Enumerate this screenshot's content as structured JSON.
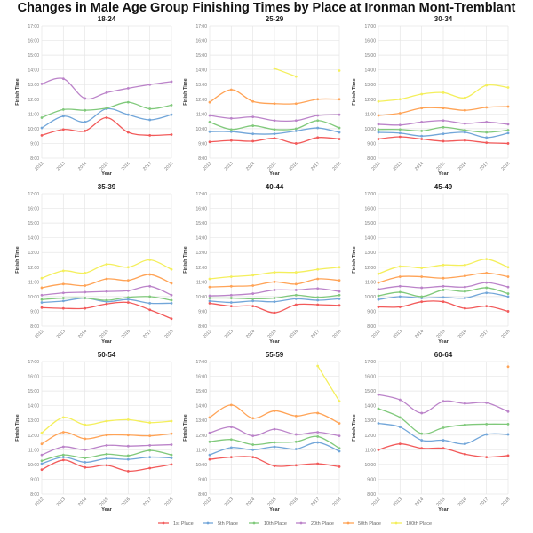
{
  "title": "Changes in Male Age Group Finishing Times by Place at Ironman Mont-Tremblant",
  "chart_data": {
    "type": "line",
    "xlabel": "Year",
    "ylabel": "Finish Time",
    "ylim": [
      8,
      17
    ],
    "y_ticks": [
      "8:00",
      "9:00",
      "10:00",
      "11:00",
      "12:00",
      "13:00",
      "14:00",
      "15:00",
      "16:00",
      "17:00"
    ],
    "x": [
      "2012",
      "2013",
      "2014",
      "2015",
      "2016",
      "2017",
      "2018"
    ],
    "grid": true,
    "legend_position": "bottom",
    "series_names": [
      "1st Place",
      "5th Place",
      "10th Place",
      "20th Place",
      "50th Place",
      "100th Place"
    ],
    "colors": [
      "#f25a5a",
      "#72a6d9",
      "#80c97b",
      "#bb83c9",
      "#ffa356",
      "#f4ef5c"
    ],
    "panels": [
      {
        "title": "18-24",
        "series": [
          [
            9.55,
            9.95,
            9.85,
            10.75,
            9.75,
            9.55,
            9.6
          ],
          [
            10.05,
            10.85,
            10.45,
            11.35,
            10.95,
            10.6,
            10.95
          ],
          [
            10.75,
            11.3,
            11.25,
            11.4,
            11.8,
            11.35,
            11.6
          ],
          [
            13.05,
            13.4,
            12.05,
            12.45,
            12.75,
            13.0,
            13.2
          ],
          [
            null,
            null,
            null,
            null,
            null,
            null,
            null
          ],
          [
            null,
            null,
            null,
            null,
            null,
            null,
            null
          ]
        ]
      },
      {
        "title": "25-29",
        "series": [
          [
            9.1,
            9.2,
            9.15,
            9.35,
            9.0,
            9.4,
            9.3
          ],
          [
            9.8,
            9.8,
            9.65,
            9.65,
            9.85,
            10.05,
            9.75
          ],
          [
            10.45,
            9.95,
            10.2,
            9.95,
            10.0,
            10.55,
            10.05
          ],
          [
            10.9,
            10.7,
            10.8,
            10.55,
            10.55,
            10.9,
            10.95
          ],
          [
            11.8,
            12.65,
            11.85,
            11.7,
            11.7,
            12.0,
            12.0
          ],
          [
            null,
            null,
            null,
            14.1,
            13.55,
            null,
            13.95
          ]
        ]
      },
      {
        "title": "30-34",
        "series": [
          [
            9.3,
            9.45,
            9.3,
            9.15,
            9.2,
            9.05,
            9.0
          ],
          [
            9.75,
            9.7,
            9.5,
            9.65,
            9.75,
            9.4,
            9.7
          ],
          [
            9.95,
            9.95,
            9.85,
            10.1,
            9.9,
            9.75,
            9.9
          ],
          [
            10.3,
            10.25,
            10.45,
            10.55,
            10.35,
            10.45,
            10.3
          ],
          [
            10.9,
            11.05,
            11.4,
            11.4,
            11.25,
            11.45,
            11.5
          ],
          [
            11.85,
            12.0,
            12.35,
            12.45,
            12.1,
            12.95,
            12.8
          ]
        ]
      },
      {
        "title": "35-39",
        "series": [
          [
            9.25,
            9.2,
            9.2,
            9.5,
            9.6,
            9.1,
            8.5
          ],
          [
            9.6,
            9.7,
            9.9,
            9.65,
            9.8,
            9.55,
            9.55
          ],
          [
            9.8,
            9.9,
            9.9,
            9.75,
            9.95,
            10.0,
            9.75
          ],
          [
            10.1,
            10.25,
            10.3,
            10.35,
            10.4,
            10.7,
            10.1
          ],
          [
            10.6,
            10.85,
            10.75,
            11.2,
            11.1,
            11.5,
            10.9
          ],
          [
            11.25,
            11.75,
            11.6,
            12.2,
            12.0,
            12.5,
            11.85
          ]
        ]
      },
      {
        "title": "40-44",
        "series": [
          [
            9.55,
            9.35,
            9.35,
            8.9,
            9.45,
            9.45,
            9.4
          ],
          [
            9.7,
            9.6,
            9.7,
            9.65,
            9.85,
            9.75,
            9.85
          ],
          [
            9.9,
            9.9,
            9.85,
            9.9,
            10.1,
            9.95,
            10.1
          ],
          [
            10.05,
            10.1,
            10.2,
            10.45,
            10.45,
            10.55,
            10.35
          ],
          [
            10.65,
            10.7,
            10.75,
            11.0,
            10.85,
            11.2,
            11.1
          ],
          [
            11.2,
            11.35,
            11.45,
            11.65,
            11.65,
            11.85,
            12.0
          ]
        ]
      },
      {
        "title": "45-49",
        "series": [
          [
            9.3,
            9.3,
            9.65,
            9.65,
            9.2,
            9.35,
            9.0
          ],
          [
            9.8,
            10.0,
            9.9,
            9.95,
            9.9,
            10.25,
            10.0
          ],
          [
            10.05,
            10.3,
            10.0,
            10.45,
            10.35,
            10.6,
            10.2
          ],
          [
            10.5,
            10.7,
            10.6,
            10.7,
            10.65,
            10.95,
            10.65
          ],
          [
            10.95,
            11.35,
            11.35,
            11.25,
            11.4,
            11.6,
            11.35
          ],
          [
            11.55,
            12.05,
            11.95,
            12.15,
            12.15,
            12.55,
            12.0
          ]
        ]
      },
      {
        "title": "50-54",
        "series": [
          [
            9.65,
            10.3,
            9.8,
            9.95,
            9.55,
            9.75,
            10.0
          ],
          [
            10.05,
            10.5,
            10.15,
            10.4,
            10.35,
            10.5,
            10.45
          ],
          [
            10.25,
            10.65,
            10.45,
            10.7,
            10.6,
            10.95,
            10.65
          ],
          [
            10.65,
            11.2,
            11.0,
            11.3,
            11.25,
            11.3,
            11.35
          ],
          [
            11.4,
            12.2,
            11.75,
            12.0,
            12.0,
            11.95,
            12.1
          ],
          [
            12.15,
            13.2,
            12.7,
            12.95,
            13.05,
            12.85,
            12.95
          ]
        ]
      },
      {
        "title": "55-59",
        "series": [
          [
            10.35,
            10.5,
            10.5,
            9.9,
            9.95,
            10.05,
            9.85
          ],
          [
            10.65,
            11.15,
            11.0,
            11.2,
            11.05,
            11.5,
            10.9
          ],
          [
            11.55,
            11.7,
            11.35,
            11.5,
            11.55,
            11.9,
            11.1
          ],
          [
            12.15,
            12.55,
            11.95,
            12.4,
            12.05,
            12.2,
            11.95
          ],
          [
            13.2,
            14.05,
            13.15,
            13.65,
            13.3,
            13.5,
            12.8
          ],
          [
            null,
            null,
            null,
            null,
            null,
            16.7,
            14.3
          ]
        ]
      },
      {
        "title": "60-64",
        "series": [
          [
            11.0,
            11.4,
            11.1,
            11.1,
            10.7,
            10.5,
            10.6
          ],
          [
            12.8,
            12.55,
            11.65,
            11.65,
            11.4,
            12.05,
            12.05
          ],
          [
            13.8,
            13.2,
            12.1,
            12.5,
            12.7,
            12.75,
            12.75
          ],
          [
            14.75,
            14.4,
            13.5,
            14.3,
            14.15,
            14.2,
            13.6
          ],
          [
            null,
            null,
            null,
            null,
            null,
            null,
            16.65
          ],
          [
            null,
            null,
            null,
            null,
            null,
            null,
            null
          ]
        ]
      }
    ]
  }
}
